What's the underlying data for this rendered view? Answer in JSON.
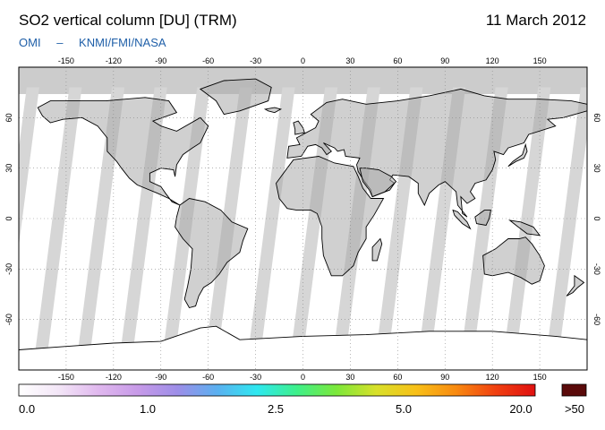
{
  "header": {
    "title": "SO2 vertical column [DU] (TRM)",
    "date": "11 March 2012",
    "credit_primary": "OMI",
    "credit_separator": "–",
    "credit_org": "KNMI/FMI/NASA"
  },
  "map": {
    "projection": "plate-carree",
    "lon_range": [
      -180,
      180
    ],
    "lat_range": [
      -90,
      90
    ],
    "lon_ticks": [
      -150,
      -120,
      -90,
      -60,
      -30,
      0,
      30,
      60,
      90,
      120,
      150
    ],
    "lat_ticks": [
      60,
      30,
      0,
      -30,
      -60
    ],
    "colors": {
      "land": "#a9a9a9",
      "no_data_swath": "#d6d6d6",
      "polar_no_data": "#cccccc",
      "ocean": "#ffffff",
      "coastline": "#000000",
      "graticule": "#888888"
    }
  },
  "colorbar": {
    "labels": [
      "0.0",
      "1.0",
      "2.5",
      "5.0",
      "20.0"
    ],
    "overflow_label": ">50",
    "overflow_color": "#5a0a0a",
    "gradient_colors": [
      "#ffffff",
      "#f3e6f7",
      "#e0b8ee",
      "#c79ae8",
      "#9d8ee8",
      "#5ab0f0",
      "#2ee8f0",
      "#3ef08a",
      "#7ce83a",
      "#d8e02a",
      "#f8c018",
      "#f88a10",
      "#f04010",
      "#e01010"
    ]
  }
}
